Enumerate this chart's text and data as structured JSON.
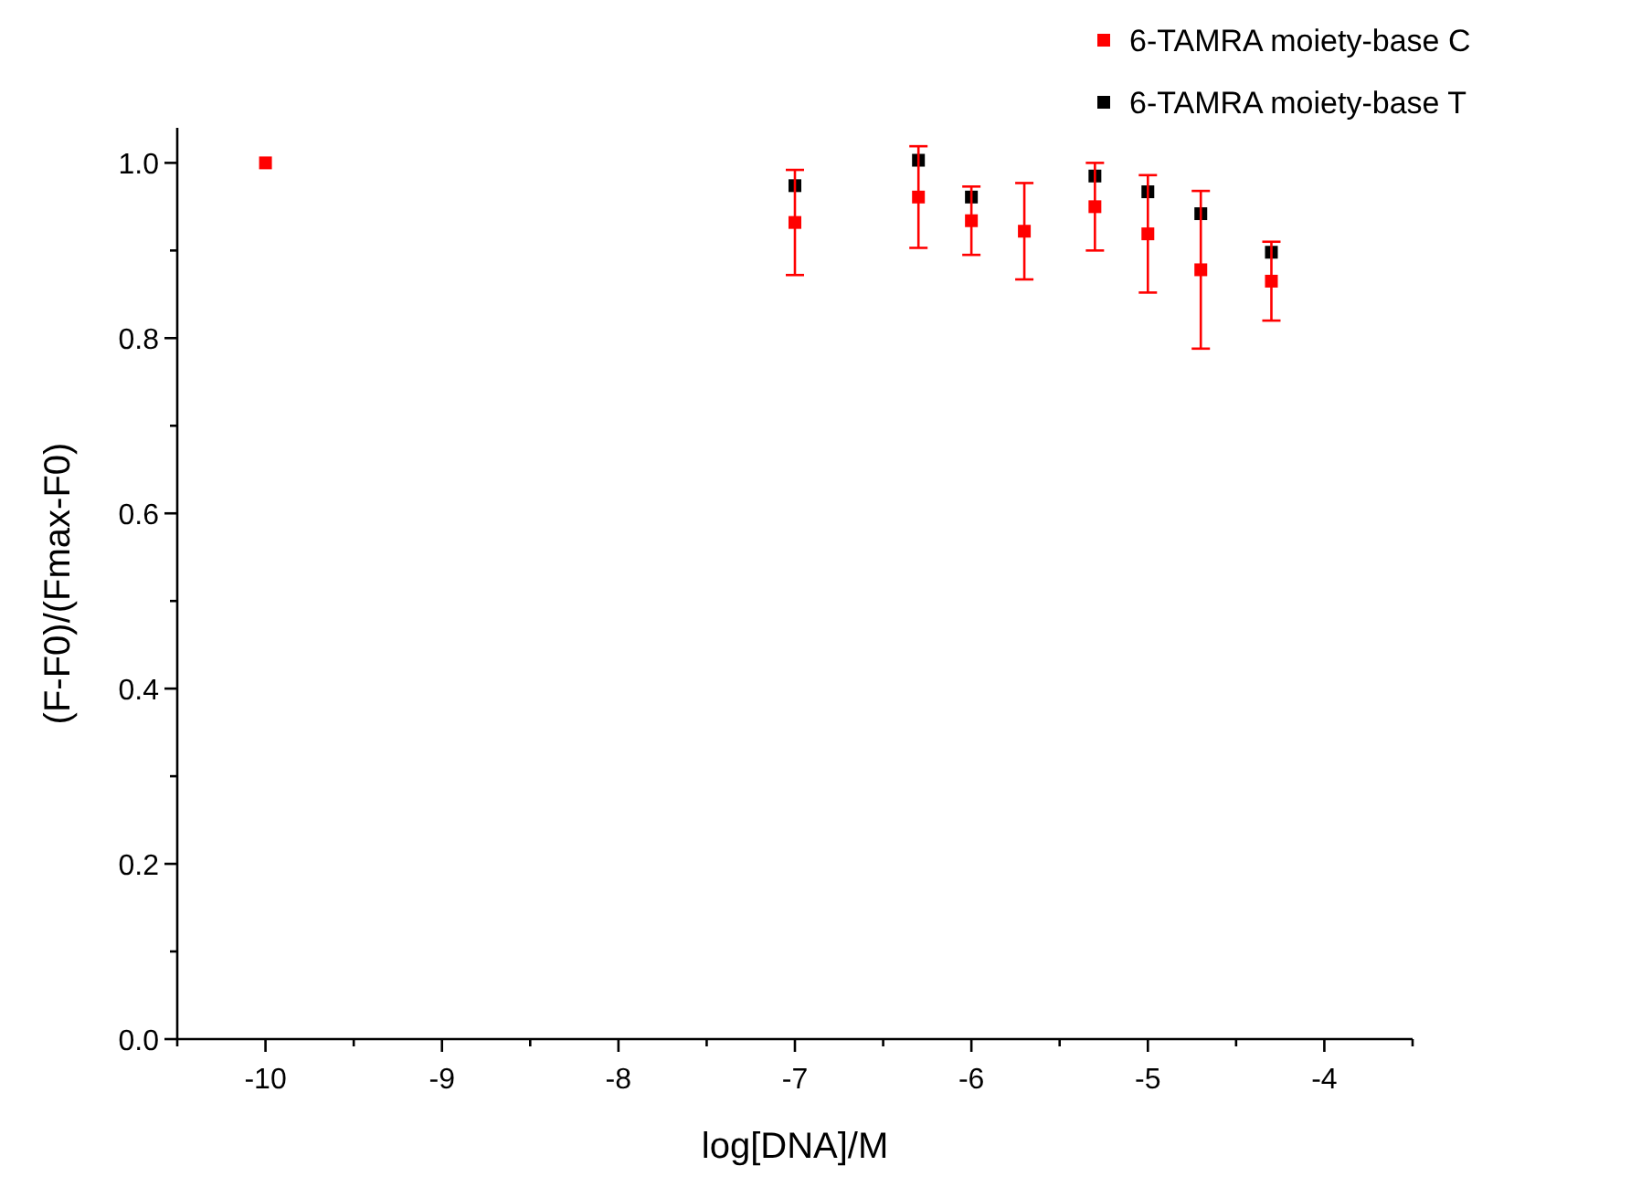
{
  "chart_data": {
    "type": "scatter",
    "xlabel": "log[DNA]/M",
    "ylabel": "(F-F0)/(Fmax-F0)",
    "xlim": [
      -10.5,
      -3.5
    ],
    "xticks": [
      {
        "value": -10.5,
        "label": null
      },
      -10,
      {
        "value": -9.5,
        "label": null
      },
      -9,
      {
        "value": -8.5,
        "label": null
      },
      -8,
      {
        "value": -7.5,
        "label": null
      },
      -7,
      {
        "value": -6.5,
        "label": null
      },
      -6,
      {
        "value": -5.5,
        "label": null
      },
      -5,
      {
        "value": -4.5,
        "label": null
      },
      -4,
      {
        "value": -3.5,
        "label": null
      }
    ],
    "ylim": [
      0,
      1.04
    ],
    "yticks": [
      {
        "value": 0,
        "label": "0.0"
      },
      {
        "value": 0.1,
        "label": null
      },
      {
        "value": 0.2,
        "label": "0.2"
      },
      {
        "value": 0.3,
        "label": null
      },
      {
        "value": 0.4,
        "label": "0.4"
      },
      {
        "value": 0.5,
        "label": null
      },
      {
        "value": 0.6,
        "label": "0.6"
      },
      {
        "value": 0.7,
        "label": null
      },
      {
        "value": 0.8,
        "label": "0.8"
      },
      {
        "value": 0.9,
        "label": null
      },
      {
        "value": 1.0,
        "label": "1.0"
      }
    ],
    "grid": false,
    "legend": "top right",
    "marker": "square",
    "series": [
      {
        "name": "6-TAMRA moiety-base C",
        "color": "#ff0000",
        "x": [
          -10,
          -7,
          -6.3,
          -6,
          -5.7,
          -5.3,
          -5,
          -4.7,
          -4.3
        ],
        "values": [
          1.0,
          0.932,
          0.961,
          0.934,
          0.922,
          0.95,
          0.919,
          0.878,
          0.865
        ],
        "errors": [
          null,
          0.06,
          0.058,
          0.039,
          0.055,
          0.05,
          0.067,
          0.09,
          0.045
        ]
      },
      {
        "name": "6-TAMRA moiety-base T",
        "color": "#000000",
        "x": [
          -7,
          -6.3,
          -6,
          -5.3,
          -5,
          -4.7,
          -4.3
        ],
        "values": [
          0.974,
          1.003,
          0.961,
          0.985,
          0.967,
          0.942,
          0.898
        ]
      }
    ]
  }
}
